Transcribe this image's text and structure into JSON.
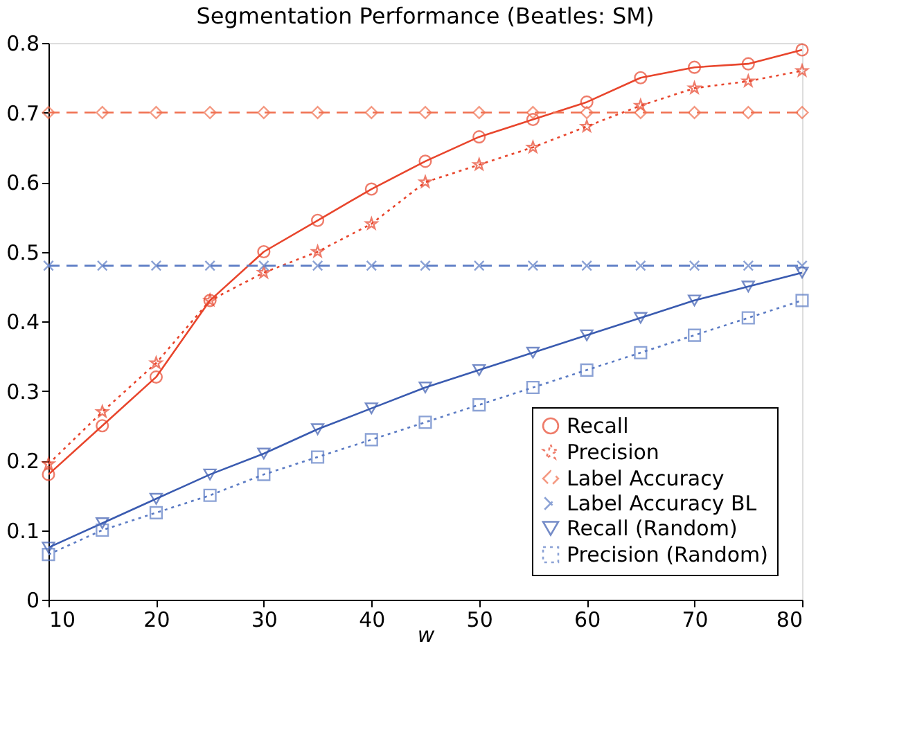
{
  "chart_data": {
    "type": "line",
    "title": "Segmentation Performance (Beatles: SM)",
    "xlabel": "w",
    "x": [
      10,
      15,
      20,
      25,
      30,
      35,
      40,
      45,
      50,
      55,
      60,
      65,
      70,
      75,
      80
    ],
    "xlim": [
      10,
      80
    ],
    "xticks": [
      10,
      20,
      30,
      40,
      50,
      60,
      70,
      80
    ],
    "ylim": [
      0,
      0.8
    ],
    "yticks": [
      0,
      0.1,
      0.2,
      0.3,
      0.4,
      0.5,
      0.6,
      0.7,
      0.8
    ],
    "grid": false,
    "legend": "bottom right",
    "series": [
      {
        "name": "Recall",
        "color": "#e8452c",
        "marker": "circle",
        "line_style": "solid",
        "values": [
          0.18,
          0.25,
          0.32,
          0.43,
          0.5,
          0.545,
          0.59,
          0.63,
          0.665,
          0.69,
          0.715,
          0.75,
          0.765,
          0.77,
          0.79
        ]
      },
      {
        "name": "Precision",
        "color": "#e8452c",
        "marker": "star",
        "line_style": "dotted",
        "values": [
          0.195,
          0.27,
          0.34,
          0.43,
          0.47,
          0.5,
          0.54,
          0.6,
          0.625,
          0.65,
          0.68,
          0.71,
          0.735,
          0.745,
          0.76
        ]
      },
      {
        "name": "Label Accuracy",
        "color": "#f07050",
        "marker": "diamond",
        "line_style": "dashed",
        "values": [
          0.7,
          0.7,
          0.7,
          0.7,
          0.7,
          0.7,
          0.7,
          0.7,
          0.7,
          0.7,
          0.7,
          0.7,
          0.7,
          0.7,
          0.7
        ]
      },
      {
        "name": "Label Accuracy BL",
        "color": "#5b7bc4",
        "marker": "cross",
        "line_style": "dashed",
        "values": [
          0.48,
          0.48,
          0.48,
          0.48,
          0.48,
          0.48,
          0.48,
          0.48,
          0.48,
          0.48,
          0.48,
          0.48,
          0.48,
          0.48,
          0.48
        ]
      },
      {
        "name": "Recall (Random)",
        "color": "#3a5bb0",
        "marker": "triangle",
        "line_style": "solid",
        "values": [
          0.075,
          0.11,
          0.145,
          0.18,
          0.21,
          0.245,
          0.275,
          0.305,
          0.33,
          0.355,
          0.38,
          0.405,
          0.43,
          0.45,
          0.47
        ]
      },
      {
        "name": "Precision (Random)",
        "color": "#5b7bc4",
        "marker": "square",
        "line_style": "dotted",
        "values": [
          0.065,
          0.1,
          0.125,
          0.15,
          0.18,
          0.205,
          0.23,
          0.255,
          0.28,
          0.305,
          0.33,
          0.355,
          0.38,
          0.405,
          0.43
        ]
      }
    ]
  }
}
